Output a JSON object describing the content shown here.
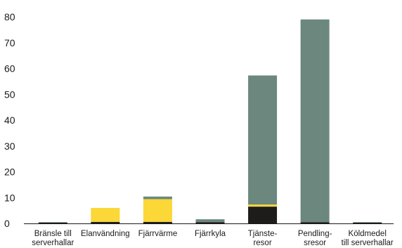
{
  "chart_data": {
    "type": "bar",
    "stacked": true,
    "categories": [
      [
        "Bränsle till",
        "serverhallar"
      ],
      [
        "Elanvändning"
      ],
      [
        "Fjärrvärme"
      ],
      [
        "Fjärrkyla"
      ],
      [
        "Tjänste-",
        "resor"
      ],
      [
        "Pendling-",
        "sresor"
      ],
      [
        "Köldmedel",
        "till serverhallar"
      ]
    ],
    "series": [
      {
        "color": "#1e1c1a",
        "values": [
          0.3,
          0.6,
          0.6,
          0.5,
          6.5,
          0.5,
          0.3
        ]
      },
      {
        "color": "#fbd738",
        "values": [
          0.0,
          5.4,
          8.8,
          0.0,
          0.8,
          0.0,
          0.0
        ]
      },
      {
        "color": "#6c877d",
        "values": [
          0.2,
          0.0,
          1.0,
          1.1,
          50.0,
          78.5,
          0.2
        ]
      }
    ],
    "yticks": [
      0,
      10,
      20,
      30,
      40,
      50,
      60,
      70,
      80
    ],
    "ylim": [
      0,
      80
    ],
    "title": "",
    "xlabel": "",
    "ylabel": "",
    "grid": false,
    "legend": "none"
  }
}
